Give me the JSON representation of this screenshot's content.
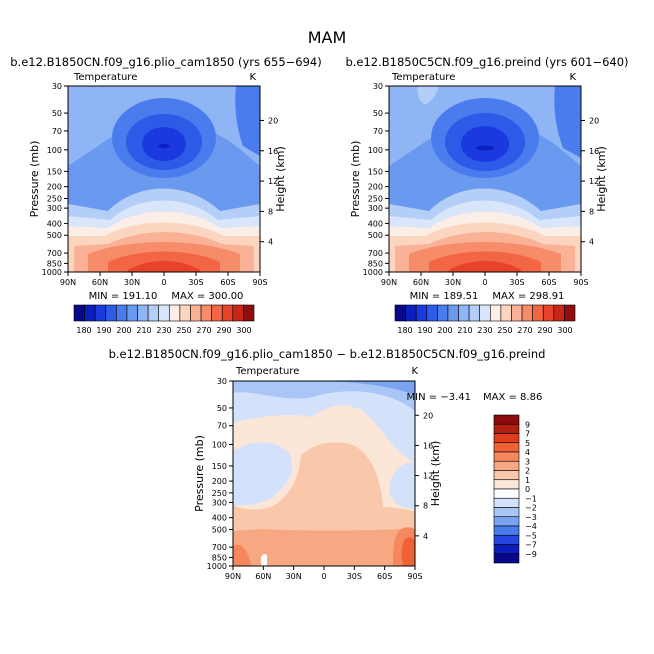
{
  "figure_title": "MAM",
  "colors": {
    "temp_scale": [
      "#08088a",
      "#0b1fbf",
      "#1a3ae0",
      "#2e5ae8",
      "#4a7ced",
      "#6a9af0",
      "#8fb5f4",
      "#b3cef7",
      "#d8e5fb",
      "#fbeee6",
      "#fbd5c0",
      "#f9b296",
      "#f68c6a",
      "#f26644",
      "#e6432a",
      "#c9251a",
      "#8e0f0f"
    ],
    "diff_scale": [
      "#08088a",
      "#0b1fbf",
      "#2447e0",
      "#4a7ced",
      "#7aa3f2",
      "#a9c6f6",
      "#d3e2fa",
      "#ffffff",
      "#fbe6d8",
      "#f9c8ab",
      "#f7a883",
      "#f4875c",
      "#ef6236",
      "#e03d1c",
      "#b01f10",
      "#8a0c0c"
    ]
  },
  "chart_data": [
    {
      "type": "heatmap",
      "title": "b.e12.B1850CN.f09_g16.plio_cam1850 (yrs 655−694)",
      "left_label": "Temperature",
      "right_label": "K",
      "xlabel": "",
      "ylabel": "Pressure (mb)",
      "y2label": "Height (km)",
      "x_ticks": [
        "90N",
        "60N",
        "30N",
        "0",
        "30S",
        "60S",
        "90S"
      ],
      "y_ticks": [
        30,
        50,
        70,
        100,
        150,
        200,
        250,
        300,
        400,
        500,
        700,
        850,
        1000
      ],
      "y2_ticks": [
        20,
        16,
        12,
        8,
        4
      ],
      "ylim": [
        1000,
        30
      ],
      "min_label": "MIN = 191.10",
      "max_label": "MAX = 300.00",
      "colorbar_ticks": [
        "180",
        "190",
        "200",
        "210",
        "230",
        "250",
        "270",
        "290",
        "300"
      ]
    },
    {
      "type": "heatmap",
      "title": "b.e12.B1850C5CN.f09_g16.preind (yrs 601−640)",
      "left_label": "Temperature",
      "right_label": "K",
      "xlabel": "",
      "ylabel": "Pressure (mb)",
      "y2label": "Height (km)",
      "x_ticks": [
        "90N",
        "60N",
        "30N",
        "0",
        "30S",
        "60S",
        "90S"
      ],
      "y_ticks": [
        30,
        50,
        70,
        100,
        150,
        200,
        250,
        300,
        400,
        500,
        700,
        850,
        1000
      ],
      "y2_ticks": [
        20,
        16,
        12,
        8,
        4
      ],
      "ylim": [
        1000,
        30
      ],
      "min_label": "MIN = 189.51",
      "max_label": "MAX = 298.91",
      "colorbar_ticks": [
        "180",
        "190",
        "200",
        "210",
        "230",
        "250",
        "270",
        "290",
        "300"
      ]
    },
    {
      "type": "heatmap",
      "title": "b.e12.B1850CN.f09_g16.plio_cam1850 − b.e12.B1850C5CN.f09_g16.preind",
      "left_label": "Temperature",
      "right_label": "K",
      "xlabel": "",
      "ylabel": "Pressure (mb)",
      "y2label": "Height (km)",
      "x_ticks": [
        "90N",
        "60N",
        "30N",
        "0",
        "30S",
        "60S",
        "90S"
      ],
      "y_ticks": [
        30,
        50,
        70,
        100,
        150,
        200,
        250,
        300,
        400,
        500,
        700,
        850,
        1000
      ],
      "y2_ticks": [
        20,
        16,
        12,
        8,
        4
      ],
      "ylim": [
        1000,
        30
      ],
      "min_label": "MIN = −3.41",
      "max_label": "MAX = 8.86",
      "colorbar_ticks": [
        "9",
        "7",
        "5",
        "4",
        "3",
        "2",
        "1",
        "0",
        "−1",
        "−2",
        "−3",
        "−4",
        "−5",
        "−7",
        "−9"
      ]
    }
  ]
}
